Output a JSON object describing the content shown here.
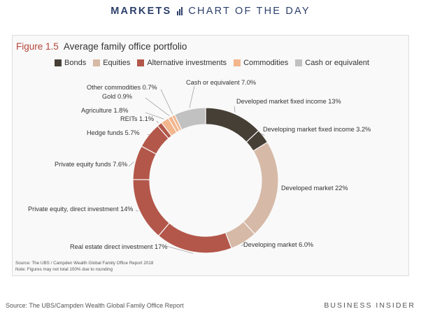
{
  "header": {
    "brand": "MARKETS",
    "subtitle": "CHART OF THE DAY"
  },
  "colors": {
    "bonds": "#463f36",
    "equities": "#d6b9a6",
    "alternative": "#b3574a",
    "commodities": "#f3b58c",
    "cash": "#c1c1c1",
    "figure_number": "#b4463a",
    "banner": "#2c3f6a"
  },
  "chart_data": {
    "type": "pie",
    "donut": true,
    "figure_number": "Figure 1.5",
    "title": "Average family office portfolio",
    "legend": [
      {
        "name": "Bonds",
        "color": "#463f36"
      },
      {
        "name": "Equities",
        "color": "#d6b9a6"
      },
      {
        "name": "Alternative investments",
        "color": "#b3574a"
      },
      {
        "name": "Commodities",
        "color": "#f3b58c"
      },
      {
        "name": "Cash or equivalent",
        "color": "#c1c1c1"
      }
    ],
    "legend_placement": "top",
    "slices": [
      {
        "label": "Developed market fixed income 13%",
        "value": 13,
        "group": "Bonds",
        "color": "#463f36"
      },
      {
        "label": "Developing market fixed income 3.2%",
        "value": 3.2,
        "group": "Bonds",
        "color": "#463f36"
      },
      {
        "label": "Developed market 22%",
        "value": 22,
        "group": "Equities",
        "color": "#d6b9a6"
      },
      {
        "label": "Developing market 6.0%",
        "value": 6.0,
        "group": "Equities",
        "color": "#d6b9a6"
      },
      {
        "label": "Real estate direct investment 17%",
        "value": 17,
        "group": "Alternative investments",
        "color": "#b3574a"
      },
      {
        "label": "Private equity, direct investment 14%",
        "value": 14,
        "group": "Alternative investments",
        "color": "#b3574a"
      },
      {
        "label": "Private equity funds 7.6%",
        "value": 7.6,
        "group": "Alternative investments",
        "color": "#b3574a"
      },
      {
        "label": "Hedge funds 5.7%",
        "value": 5.7,
        "group": "Alternative investments",
        "color": "#b3574a"
      },
      {
        "label": "REITs 1.1%",
        "value": 1.1,
        "group": "Alternative investments",
        "color": "#b3574a"
      },
      {
        "label": "Agriculture 1.8%",
        "value": 1.8,
        "group": "Commodities",
        "color": "#f3b58c"
      },
      {
        "label": "Gold 0.9%",
        "value": 0.9,
        "group": "Commodities",
        "color": "#f3b58c"
      },
      {
        "label": "Other commodities 0.7%",
        "value": 0.7,
        "group": "Commodities",
        "color": "#f3b58c"
      },
      {
        "label": "Cash or equivalent 7.0%",
        "value": 7.0,
        "group": "Cash or equivalent",
        "color": "#c1c1c1"
      }
    ],
    "source_note": "Source: The UBS / Campden Wealth Global Family Office Report 2018",
    "note": "Note: Figures may not total 100% due to rounding"
  },
  "footer": {
    "source": "Source: The UBS/Campden Wealth Global Family Office Report",
    "brand": "BUSINESS INSIDER"
  }
}
